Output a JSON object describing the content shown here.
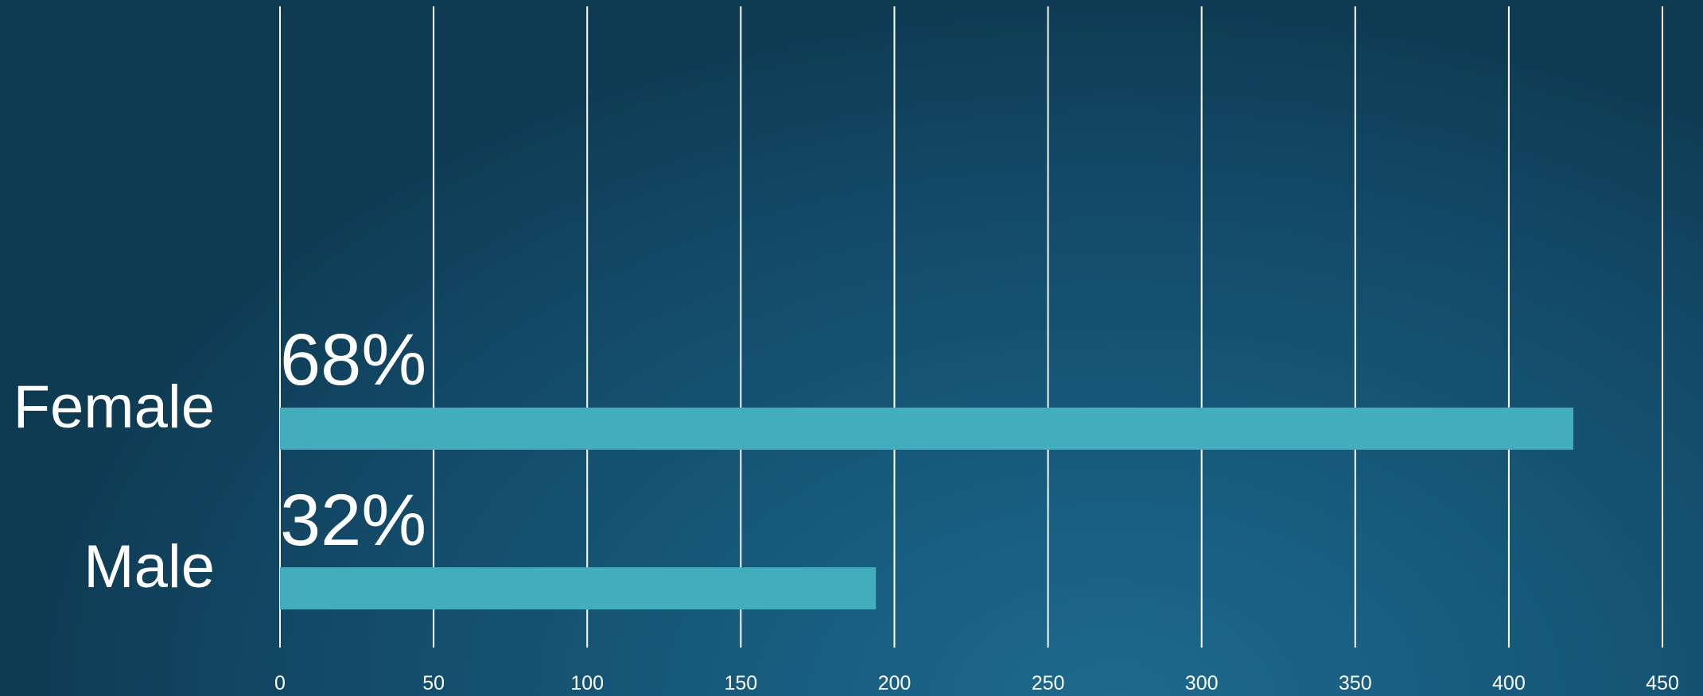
{
  "chart_data": {
    "type": "bar",
    "orientation": "horizontal",
    "categories": [
      "Female",
      "Male"
    ],
    "values": [
      421,
      194
    ],
    "data_labels": [
      "68%",
      "32%"
    ],
    "xlim": [
      0,
      450
    ],
    "x_ticks": [
      "0",
      "50",
      "100",
      "150",
      "200",
      "250",
      "300",
      "350",
      "400",
      "450"
    ],
    "title": "",
    "xlabel": "",
    "ylabel": "",
    "grid": "vertical",
    "legend": "none",
    "colors": {
      "bar": "#42adbd",
      "grid": "#ffffff",
      "text": "#ffffff"
    }
  }
}
